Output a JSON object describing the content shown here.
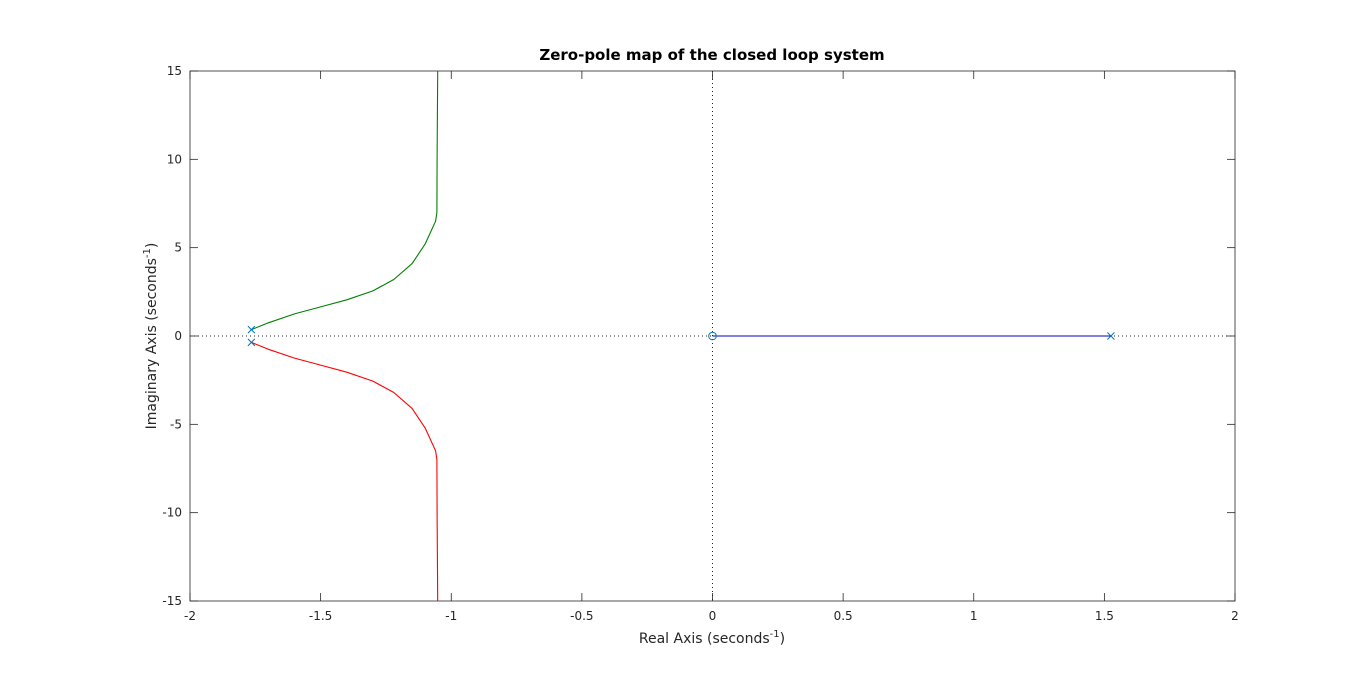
{
  "chart_data": {
    "type": "line",
    "title": "Zero-pole map of the closed loop system",
    "xlabel": "Real Axis (seconds",
    "xlabel_sup": "-1",
    "xlabel_suffix": ")",
    "ylabel": "Imaginary Axis (seconds",
    "ylabel_sup": "-1",
    "ylabel_suffix": ")",
    "xlim": [
      -2,
      2
    ],
    "ylim": [
      -15,
      15
    ],
    "xticks": [
      -2,
      -1.5,
      -1,
      -0.5,
      0,
      0.5,
      1,
      1.5,
      2
    ],
    "xtick_labels": [
      "-2",
      "-1.5",
      "-1",
      "-0.5",
      "0",
      "0.5",
      "1",
      "1.5",
      "2"
    ],
    "yticks": [
      -15,
      -10,
      -5,
      0,
      5,
      10,
      15
    ],
    "ytick_labels": [
      "-15",
      "-10",
      "-5",
      "0",
      "5",
      "10",
      "15"
    ],
    "grid": false,
    "reference_lines": {
      "x": 0,
      "y": 0,
      "style": "dotted"
    },
    "series": [
      {
        "color": "#008000",
        "points": [
          [
            -1.765,
            0.36
          ],
          [
            -1.7,
            0.75
          ],
          [
            -1.6,
            1.25
          ],
          [
            -1.5,
            1.65
          ],
          [
            -1.4,
            2.05
          ],
          [
            -1.3,
            2.55
          ],
          [
            -1.22,
            3.2
          ],
          [
            -1.15,
            4.1
          ],
          [
            -1.1,
            5.2
          ],
          [
            -1.06,
            6.5
          ],
          [
            -1.055,
            7.0
          ],
          [
            -1.054,
            10.0
          ],
          [
            -1.052,
            15.0
          ]
        ]
      },
      {
        "color": "#ff0000",
        "points": [
          [
            -1.765,
            -0.36
          ],
          [
            -1.7,
            -0.75
          ],
          [
            -1.6,
            -1.25
          ],
          [
            -1.5,
            -1.65
          ],
          [
            -1.4,
            -2.05
          ],
          [
            -1.3,
            -2.55
          ],
          [
            -1.22,
            -3.2
          ],
          [
            -1.15,
            -4.1
          ],
          [
            -1.1,
            -5.2
          ],
          [
            -1.06,
            -6.5
          ],
          [
            -1.055,
            -7.0
          ],
          [
            -1.054,
            -10.0
          ],
          [
            -1.052,
            -15.0
          ]
        ]
      },
      {
        "color": "#0000cc",
        "points": [
          [
            0,
            0
          ],
          [
            1.525,
            0
          ]
        ]
      }
    ],
    "poles": [
      [
        -1.765,
        0.36
      ],
      [
        -1.765,
        -0.36
      ],
      [
        1.525,
        0
      ]
    ],
    "zeros": [
      [
        0,
        0
      ]
    ],
    "marker_color": "#0072bd"
  }
}
